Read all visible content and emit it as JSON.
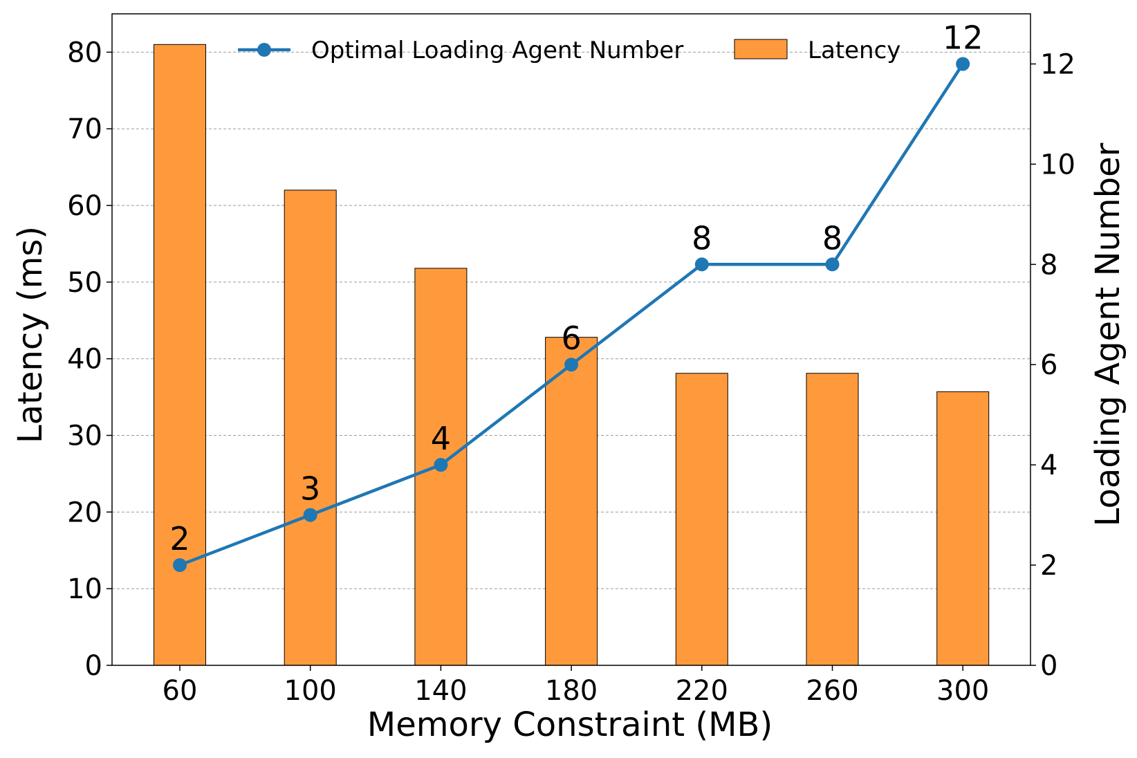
{
  "chart_data": {
    "type": "bar",
    "categories": [
      "60",
      "100",
      "140",
      "180",
      "220",
      "260",
      "300"
    ],
    "series": [
      {
        "name": "Latency",
        "type": "bar",
        "axis": "left",
        "values": [
          81,
          62,
          51.8,
          42.8,
          38.1,
          38.1,
          35.7
        ]
      },
      {
        "name": "Optimal Loading Agent Number",
        "type": "line",
        "axis": "right",
        "values": [
          2,
          3,
          4,
          6,
          8,
          8,
          12
        ],
        "point_labels": [
          "2",
          "3",
          "4",
          "6",
          "8",
          "8",
          "12"
        ]
      }
    ],
    "xlabel": "Memory Constraint (MB)",
    "ylabel": "Latency (ms)",
    "y2label": "Loading Agent Number",
    "ylim": [
      0,
      85
    ],
    "y2lim": [
      0,
      13
    ],
    "yticks": [
      "0",
      "10",
      "20",
      "30",
      "40",
      "50",
      "60",
      "70",
      "80"
    ],
    "y2ticks": [
      "0",
      "2",
      "4",
      "6",
      "8",
      "10",
      "12"
    ],
    "grid": true,
    "legend_position": "top-center",
    "colors": {
      "bar": "#ff9a3c",
      "bar_edge": "#000000",
      "line": "#1f77b4"
    }
  }
}
